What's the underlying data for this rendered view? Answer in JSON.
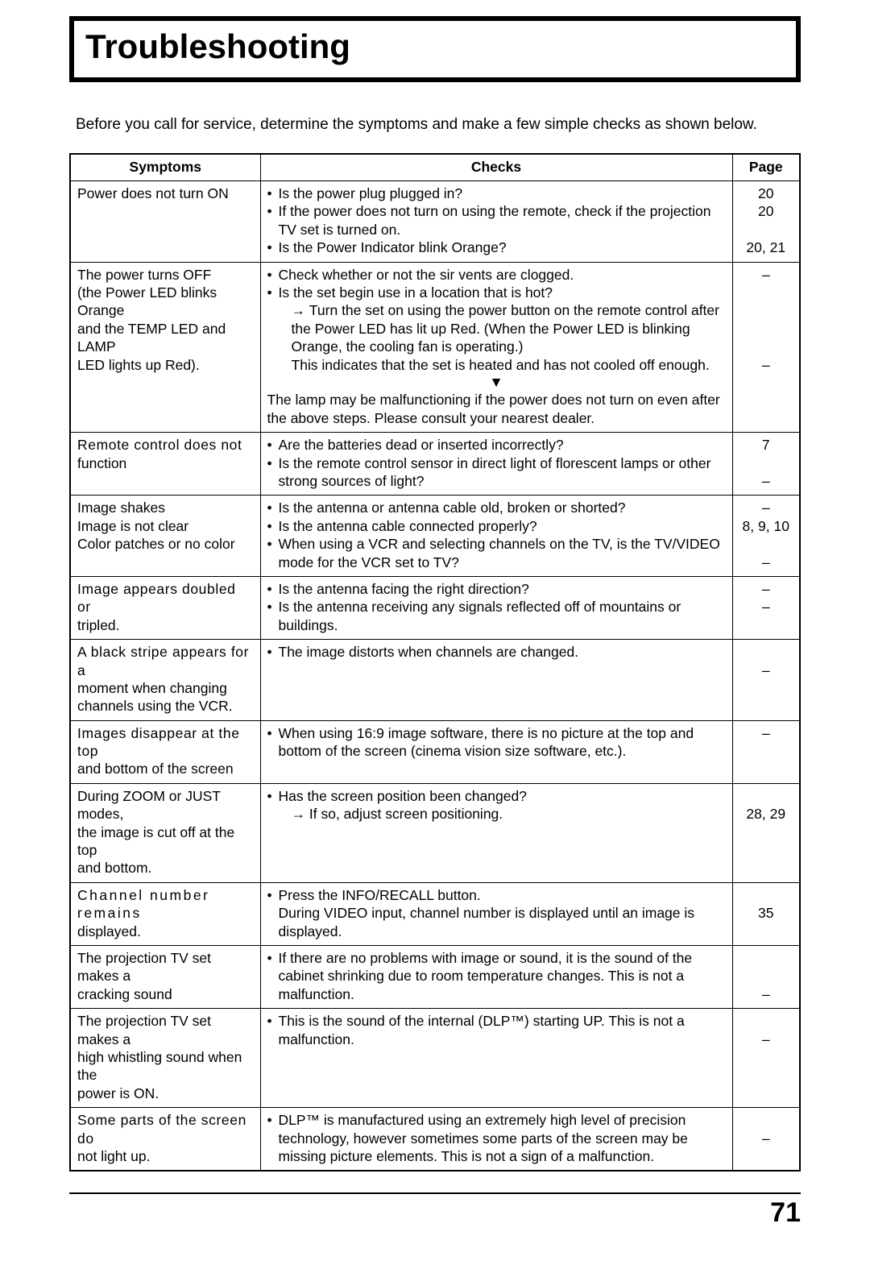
{
  "title": "Troubleshooting",
  "intro": "Before you call for service, determine the symptoms and make a few simple checks as shown below.",
  "headers": {
    "symptoms": "Symptoms",
    "checks": "Checks",
    "page": "Page"
  },
  "page_number": "71",
  "rows": [
    {
      "symptom_lines": [
        "Power does not turn ON"
      ],
      "checks": [
        {
          "text": "Is the power plug plugged in?"
        },
        {
          "text": "If the power does not turn on using the remote, check if the projection TV set is turned on."
        },
        {
          "text": "Is the Power Indicator blink Orange?"
        }
      ],
      "pages": "20\n20\n\n20, 21"
    },
    {
      "symptom_lines": [
        "The power turns OFF",
        "(the Power LED blinks Orange",
        "and the TEMP LED and LAMP",
        "LED lights up Red)."
      ],
      "checks": [
        {
          "text": "Check whether or not the sir vents are clogged."
        },
        {
          "text": "Is the set begin use in a location that is hot?",
          "subs": [
            {
              "arrow": true,
              "text": "Turn the set on using the power button on the remote control after the Power LED has lit up Red. (When the Power LED is blinking Orange, the cooling fan is operating.)"
            },
            {
              "arrow": false,
              "text": "This indicates that the set is heated and has not cooled off enough."
            }
          ]
        }
      ],
      "downarrow": true,
      "after_arrow": "The lamp may be malfunctioning if the power does not turn on even after the above steps. Please consult your nearest dealer.",
      "pages": "–\n\n\n\n\n–"
    },
    {
      "symptom_lines": [
        "Remote control does not",
        "function"
      ],
      "symptom_stretch": "stretch",
      "checks": [
        {
          "text": "Are the batteries dead or inserted incorrectly?"
        },
        {
          "text": "Is the remote control sensor in direct light of florescent lamps or other strong sources of light?"
        }
      ],
      "pages": "7\n\n–"
    },
    {
      "symptom_lines": [
        "Image shakes",
        "Image is not clear",
        "Color patches or no color"
      ],
      "checks": [
        {
          "text": "Is the antenna or antenna cable old, broken or shorted?"
        },
        {
          "text": "Is the antenna cable connected properly?"
        },
        {
          "text": "When using a VCR and selecting channels on the TV, is the TV/VIDEO mode for the VCR set to TV?"
        }
      ],
      "pages": "–\n8, 9, 10\n\n–"
    },
    {
      "symptom_lines": [
        "Image appears doubled or",
        "tripled."
      ],
      "symptom_stretch": "stretch",
      "checks": [
        {
          "text": "Is the antenna facing the right direction?"
        },
        {
          "text": "Is the antenna receiving any signals reflected off of mountains or buildings.",
          "just": true
        }
      ],
      "pages": "–\n–"
    },
    {
      "symptom_lines": [
        "A black stripe appears for a",
        "moment when changing",
        "channels using the VCR."
      ],
      "symptom_stretch": "stretch",
      "checks": [
        {
          "text": "The image distorts when channels are changed."
        }
      ],
      "pages": "\n–"
    },
    {
      "symptom_lines": [
        "Images disappear at the top",
        "and bottom of the screen"
      ],
      "symptom_stretch": "stretch",
      "checks": [
        {
          "text": "When using 16:9 image software, there is no picture at the top and bottom of the screen (cinema vision size software, etc.).",
          "just": true
        }
      ],
      "pages": "–"
    },
    {
      "symptom_lines": [
        "During ZOOM or JUST modes,",
        "the image is cut off at the top",
        "and bottom."
      ],
      "checks": [
        {
          "text": "Has the screen position been changed?",
          "subs": [
            {
              "arrow": true,
              "text": "If so, adjust screen positioning."
            }
          ]
        }
      ],
      "pages": "\n28, 29"
    },
    {
      "symptom_lines": [
        "Channel number remains",
        "displayed."
      ],
      "symptom_stretch": "stretch2",
      "checks": [
        {
          "text": "Press the INFO/RECALL button.",
          "subs": [
            {
              "arrow": false,
              "plain": true,
              "text": "During VIDEO input, channel number is displayed until an image is displayed."
            }
          ]
        }
      ],
      "pages": "\n35"
    },
    {
      "symptom_lines": [
        "The projection TV set makes a",
        "cracking sound"
      ],
      "checks": [
        {
          "text": "If there are no problems with image or sound, it is the sound of the cabinet shrinking due to room temperature changes. This is not a malfunction.",
          "just": true
        }
      ],
      "pages": "\n\n–"
    },
    {
      "symptom_lines": [
        "The projection TV set makes a",
        "high whistling sound when the",
        "power is ON."
      ],
      "checks": [
        {
          "text": "This is the sound of the internal (DLP™) starting UP. This is not a malfunction.",
          "just": true
        }
      ],
      "pages": "\n–"
    },
    {
      "symptom_lines": [
        "Some parts of the screen do",
        "not light up."
      ],
      "symptom_stretch": "stretch",
      "checks": [
        {
          "text": "DLP™ is manufactured using an extremely high level of precision technology, however sometimes some parts of the screen may be missing picture elements. This is not a sign of a malfunction."
        }
      ],
      "pages": "\n–"
    }
  ]
}
